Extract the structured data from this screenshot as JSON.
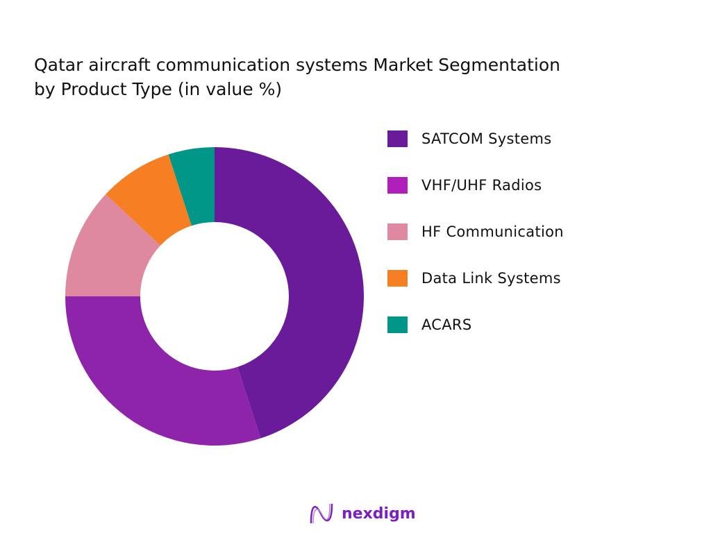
{
  "chart_data": {
    "type": "pie",
    "donut": true,
    "title": "Qatar aircraft communication systems Market Segmentation by Product Type  (in value %)",
    "title_lines": [
      "Qatar aircraft communication systems Market Segmentation",
      "by Product Type  (in value %)"
    ],
    "legend_position": "right",
    "series": [
      {
        "name": "SATCOM Systems",
        "value": 45,
        "color": "#6a1b9a",
        "legend_color": "#6a1b9a"
      },
      {
        "name": "VHF/UHF Radios",
        "value": 30,
        "color": "#8e24aa",
        "legend_color": "#b01fbc"
      },
      {
        "name": "HF Communication",
        "value": 12,
        "color": "#de89a0",
        "legend_color": "#de89a0"
      },
      {
        "name": "Data Link Systems",
        "value": 8,
        "color": "#f57f22",
        "legend_color": "#f57f22"
      },
      {
        "name": "ACARS",
        "value": 5,
        "color": "#009688",
        "legend_color": "#009688"
      }
    ]
  },
  "logo": {
    "text": "nexdigm"
  }
}
